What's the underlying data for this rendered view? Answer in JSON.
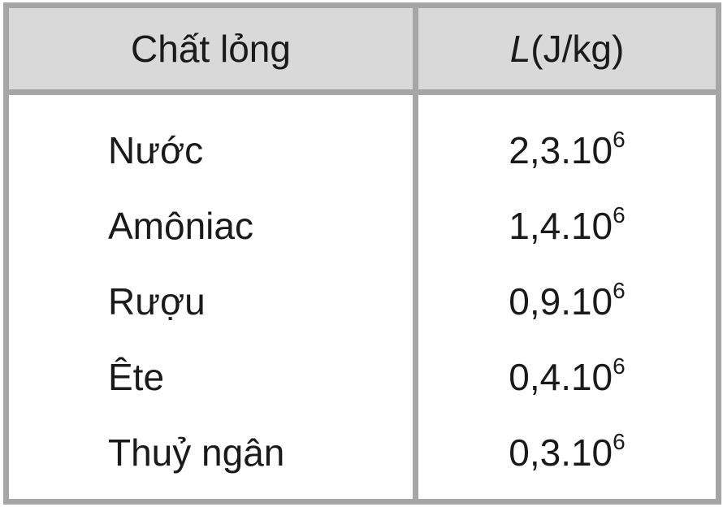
{
  "table": {
    "headers": {
      "liquid": "Chất lỏng",
      "heat_symbol": "L",
      "heat_unit": "(J/kg)"
    },
    "rows": [
      {
        "liquid": "Nước",
        "mantissa": "2,3.10",
        "exponent": "6"
      },
      {
        "liquid": "Amôniac",
        "mantissa": "1,4.10",
        "exponent": "6"
      },
      {
        "liquid": "Rượu",
        "mantissa": "0,9.10",
        "exponent": "6"
      },
      {
        "liquid": "Ête",
        "mantissa": "0,4.10",
        "exponent": "6"
      },
      {
        "liquid": "Thuỷ ngân",
        "mantissa": "0,3.10",
        "exponent": "6"
      }
    ],
    "colors": {
      "border": "#a6a6a6",
      "header_bg": "#d9d9d9"
    }
  }
}
